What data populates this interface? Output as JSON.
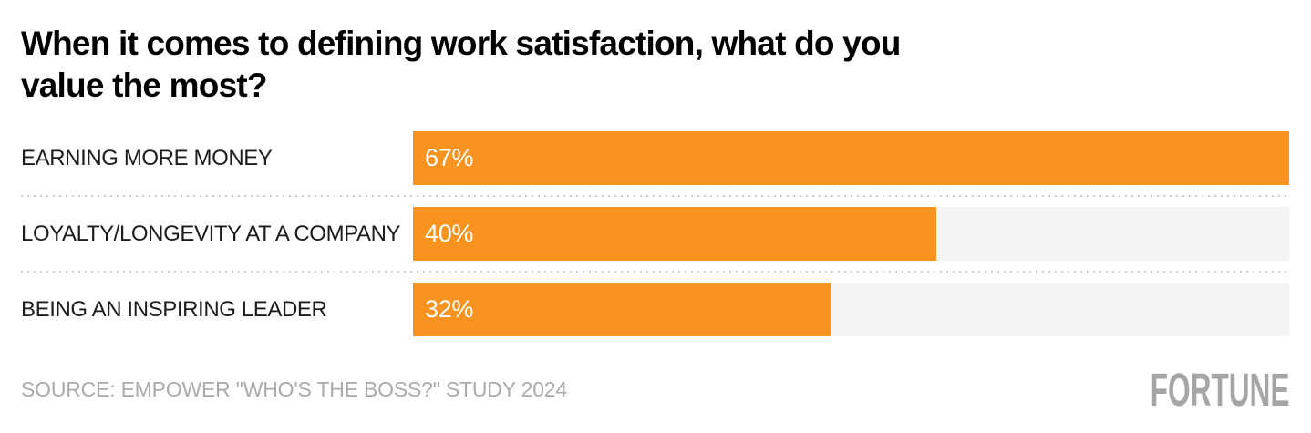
{
  "title_lines": [
    "When it comes to defining work satisfaction, what do you",
    "value the most?"
  ],
  "source": "SOURCE: EMPOWER \"WHO'S THE BOSS?\" STUDY 2024",
  "brand": {
    "logo_text": "FORTUNE"
  },
  "colors": {
    "bar": "#F7931E",
    "track": "#F4F4F4",
    "separator": "#CCCCCC",
    "title_text": "#000000",
    "label_text": "#1D1D1D",
    "value_text": "#FFFFFF",
    "source_text": "#ABABAB",
    "logo_text": "#A5A5A5"
  },
  "chart_data": {
    "type": "bar",
    "orientation": "horizontal",
    "title": "When it comes to defining work satisfaction, what do you value the most?",
    "categories": [
      "EARNING MORE MONEY",
      "LOYALTY/LONGEVITY AT A COMPANY",
      "BEING AN INSPIRING LEADER"
    ],
    "values": [
      67,
      40,
      32
    ],
    "value_labels": [
      "67%",
      "40%",
      "32%"
    ],
    "xlabel": "",
    "ylabel": "",
    "xlim": [
      0,
      67
    ],
    "bars_scaled_to_max_value": true,
    "grid": false,
    "legend": false,
    "bar_color": "#F7931E",
    "track_color": "#F4F4F4"
  }
}
